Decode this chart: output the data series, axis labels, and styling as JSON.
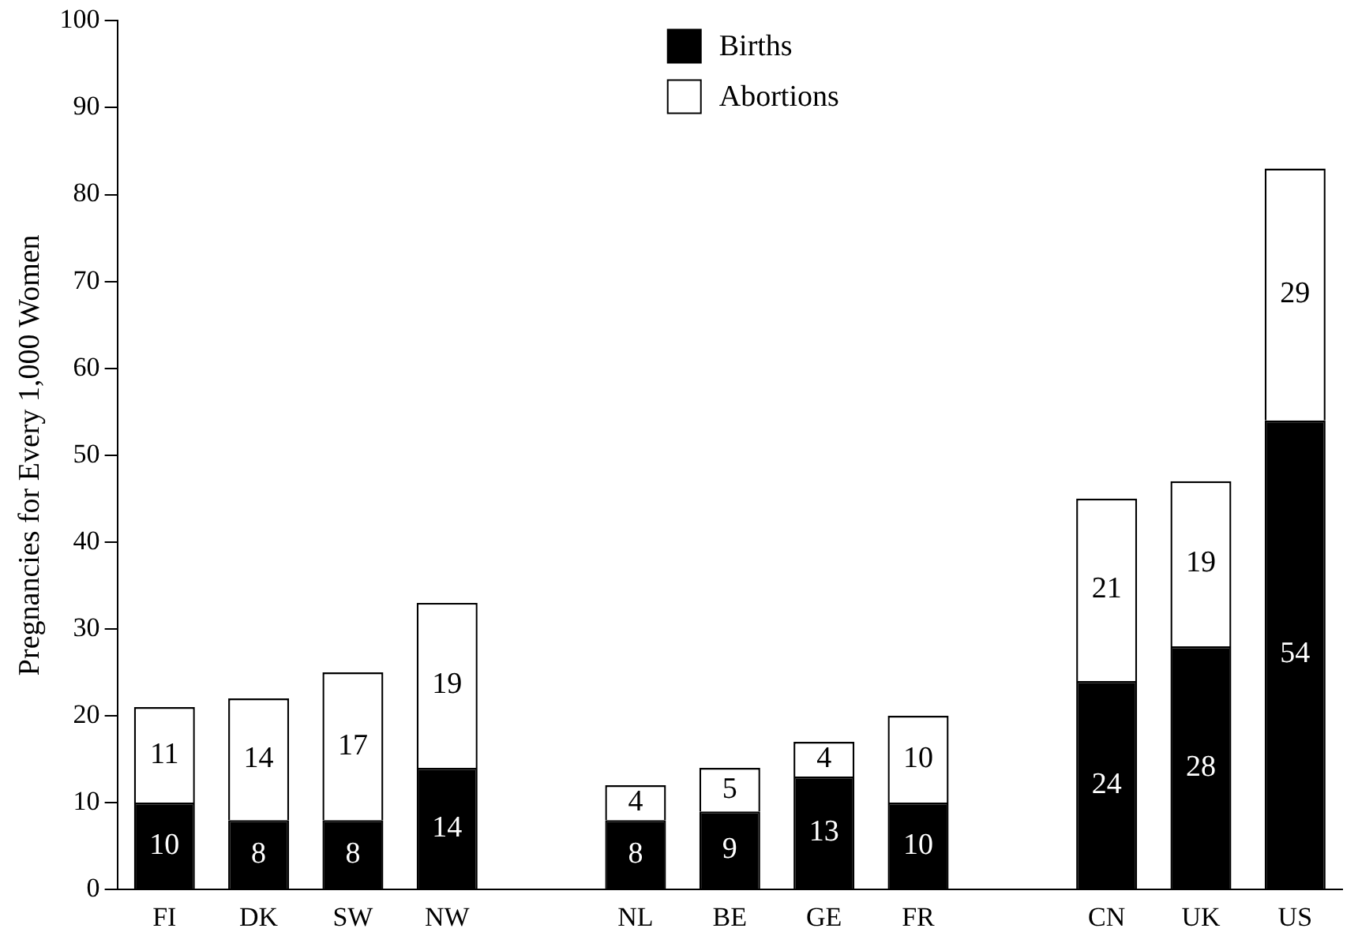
{
  "chart_data": {
    "type": "bar",
    "stacked": true,
    "ylabel": "Pregnancies for Every 1,000 Women",
    "categories": [
      "FI",
      "DK",
      "SW",
      "NW",
      null,
      "NL",
      "BE",
      "GE",
      "FR",
      null,
      "CN",
      "UK",
      "US"
    ],
    "series": [
      {
        "name": "Births",
        "color": "#000000",
        "values": [
          10,
          8,
          8,
          14,
          null,
          8,
          9,
          13,
          10,
          null,
          24,
          28,
          54
        ]
      },
      {
        "name": "Abortions",
        "color": "#ffffff",
        "values": [
          11,
          14,
          17,
          19,
          null,
          4,
          5,
          4,
          10,
          null,
          21,
          19,
          29
        ]
      }
    ],
    "ylim": [
      0,
      100
    ],
    "yticks": [
      0,
      10,
      20,
      30,
      40,
      50,
      60,
      70,
      80,
      90,
      100
    ],
    "grid": false,
    "legend": "top",
    "data_labels": true
  }
}
